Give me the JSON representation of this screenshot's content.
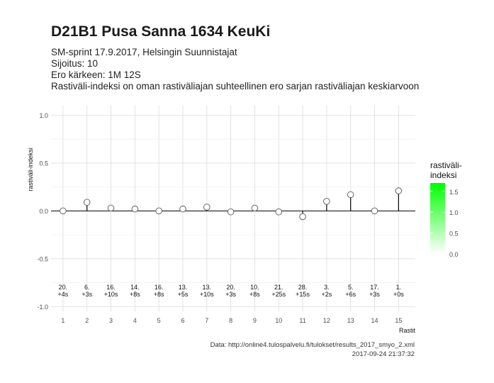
{
  "header": {
    "title": "D21B1 Pusa Sanna 1634 KeuKi",
    "subtitle_lines": [
      "SM-sprint 17.9.2017, Helsingin Suunnistajat",
      "Sijoitus: 10",
      "Ero kärkeen: 1M 12S",
      "Rastiväli-indeksi on oman rastiväliajan suhteellinen ero sarjan rastiväliajan keskiarvoon"
    ]
  },
  "chart_data": {
    "type": "scatter",
    "style": "lollipop",
    "x": [
      1,
      2,
      3,
      4,
      5,
      6,
      7,
      8,
      9,
      10,
      11,
      12,
      13,
      14,
      15
    ],
    "values": [
      0.0,
      0.09,
      0.03,
      0.02,
      0.0,
      0.02,
      0.04,
      -0.01,
      0.03,
      -0.01,
      -0.06,
      0.1,
      0.17,
      0.0,
      0.21
    ],
    "point_labels_rank": [
      "20.",
      "6.",
      "16.",
      "14.",
      "16.",
      "13.",
      "13.",
      "20.",
      "10.",
      "21.",
      "28.",
      "3.",
      "5.",
      "17.",
      "1."
    ],
    "point_labels_diff": [
      "+4s",
      "+3s",
      "+10s",
      "+8s",
      "+8s",
      "+5s",
      "+10s",
      "+3s",
      "+8s",
      "+25s",
      "+15s",
      "+2s",
      "+6s",
      "+3s",
      "+0s"
    ],
    "xlabel": "Rastit",
    "ylabel": "rastiväli-indeksi",
    "xlim": [
      0.5,
      15.7
    ],
    "ylim": [
      -1.05,
      1.1
    ],
    "xticks": [
      "1",
      "2",
      "3",
      "4",
      "5",
      "6",
      "7",
      "8",
      "9",
      "10",
      "11",
      "12",
      "13",
      "14",
      "15"
    ],
    "yticks": [
      {
        "value": 1.0,
        "label": "1.0"
      },
      {
        "value": 0.5,
        "label": "0.5"
      },
      {
        "value": 0.0,
        "label": "0.0"
      },
      {
        "value": -0.5,
        "label": "-0.5"
      },
      {
        "value": -1.0,
        "label": "-1.0"
      }
    ],
    "grid": true,
    "legend": {
      "title_lines": [
        "rastiväli-",
        "indeksi"
      ],
      "ticks": [
        {
          "value": 1.5,
          "label": "1.5"
        },
        {
          "value": 1.0,
          "label": "1.0"
        },
        {
          "value": 0.5,
          "label": "0.5"
        },
        {
          "value": 0.0,
          "label": "0.0"
        }
      ],
      "range": [
        0.0,
        1.7
      ],
      "placement": "right",
      "color_low": "#ffffff",
      "color_high": "#00ff00"
    },
    "point_fill": "#ffffff",
    "point_stroke": "#555555",
    "line_color": "#000000",
    "grid_color": "#dcdcdc"
  },
  "footer": {
    "source": "Data: http://online4.tulospalvelu.fi/tulokset/results_2017_smyo_2.xml",
    "timestamp": "2017-09-24 21:37:32"
  }
}
